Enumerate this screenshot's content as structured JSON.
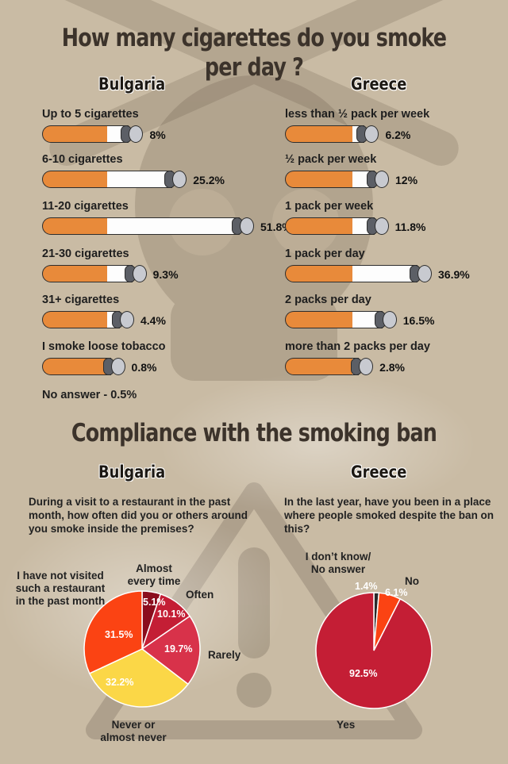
{
  "titles": {
    "smoking": "How many cigarettes do you smoke per day ?",
    "compliance": "Compliance with the smoking ban"
  },
  "countries": {
    "left": "Bulgaria",
    "right": "Greece"
  },
  "colors": {
    "background": "#c9bba4",
    "filter": "#e88a3a",
    "paper": "#fdfdfd",
    "ash": "#a8aab0",
    "pie_bulgaria": [
      "#8b0d1d",
      "#c41e35",
      "#d8324a",
      "#fbd747",
      "#fb4313"
    ],
    "pie_greece": [
      "#2a2a2a",
      "#fb4313",
      "#c41e35"
    ]
  },
  "chart_data": [
    {
      "type": "bar",
      "title": "How many cigarettes do you smoke per day ?",
      "subtitle": "Bulgaria",
      "categories": [
        "Up to 5 cigarettes",
        "6-10 cigarettes",
        "11-20 cigarettes",
        "21-30 cigarettes",
        "31+ cigarettes",
        "I smoke loose tobacco"
      ],
      "values": [
        8,
        25.2,
        51.8,
        9.3,
        4.4,
        0.8
      ],
      "value_labels": [
        "8%",
        "25.2%",
        "51.8%",
        "9.3%",
        "4.4%",
        "0.8%"
      ],
      "note": "No answer - 0.5%"
    },
    {
      "type": "bar",
      "title": "How many cigarettes do you smoke per day ?",
      "subtitle": "Greece",
      "categories": [
        "less than ½ pack per week",
        "½ pack per week",
        "1 pack per week",
        "1 pack per day",
        "2 packs per day",
        "more than 2 packs per day"
      ],
      "values": [
        6.2,
        12,
        11.8,
        36.9,
        16.5,
        2.8
      ],
      "value_labels": [
        "6.2%",
        "12%",
        "11.8%",
        "36.9%",
        "16.5%",
        "2.8%"
      ]
    },
    {
      "type": "pie",
      "title": "Compliance with the smoking ban",
      "subtitle": "Bulgaria",
      "question": "During a visit to a restaurant in the past month, how often did you or others around you smoke inside the premises?",
      "categories": [
        "Almost every time",
        "Often",
        "Rarely",
        "Never or almost never",
        "I have not visited such a restaurant in the past month"
      ],
      "values": [
        5.1,
        10.1,
        19.7,
        32.2,
        31.5
      ],
      "value_labels": [
        "5.1%",
        "10.1%",
        "19.7%",
        "32.2%",
        "31.5%"
      ]
    },
    {
      "type": "pie",
      "title": "Compliance with the smoking ban",
      "subtitle": "Greece",
      "question": "In the last year, have you been in a place where people smoked despite the ban on this?",
      "categories": [
        "I don’t know/ No answer",
        "No",
        "Yes"
      ],
      "values": [
        1.4,
        6.1,
        92.5
      ],
      "value_labels": [
        "1.4%",
        "6.1%",
        "92.5%"
      ]
    }
  ]
}
